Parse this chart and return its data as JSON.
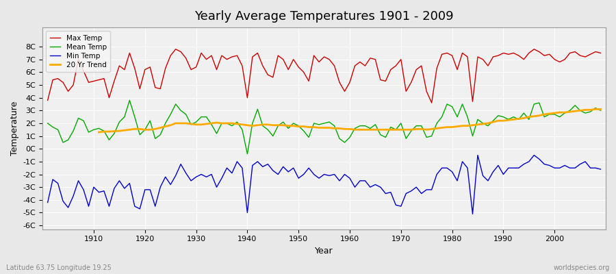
{
  "title": "Yearly Average Temperatures 1901 - 2009",
  "xlabel": "Year",
  "ylabel": "Temperature",
  "subtitle_left": "Latitude 63.75 Longitude 19.25",
  "subtitle_right": "worldspecies.org",
  "year_start": 1901,
  "year_end": 2009,
  "ylim": [
    -6,
    9
  ],
  "yticks": [
    -6,
    -5,
    -4,
    -3,
    -2,
    -1,
    0,
    1,
    2,
    3,
    4,
    5,
    6,
    7,
    8
  ],
  "ytick_labels": [
    "-6C",
    "-5C",
    "-4C",
    "-3C",
    "-2C",
    "-1C",
    "0C",
    "1C",
    "2C",
    "3C",
    "4C",
    "5C",
    "6C",
    "7C",
    "8C"
  ],
  "xticks": [
    1910,
    1920,
    1930,
    1940,
    1950,
    1960,
    1970,
    1980,
    1990,
    2000
  ],
  "colors": {
    "max_temp": "#cc0000",
    "mean_temp": "#00aa00",
    "min_temp": "#0000cc",
    "trend": "#ffaa00",
    "background": "#e8e8e8",
    "plot_bg": "#f0f0f0",
    "grid": "#ffffff"
  },
  "legend": {
    "max_label": "Max Temp",
    "mean_label": "Mean Temp",
    "min_label": "Min Temp",
    "trend_label": "20 Yr Trend"
  },
  "max_temp": [
    3.8,
    5.4,
    5.5,
    5.2,
    4.5,
    5.0,
    7.0,
    6.1,
    5.2,
    5.3,
    5.4,
    5.5,
    4.0,
    5.3,
    6.5,
    6.2,
    7.5,
    6.3,
    4.7,
    6.2,
    6.4,
    4.8,
    4.7,
    6.3,
    7.3,
    7.8,
    7.6,
    7.1,
    6.2,
    6.4,
    7.5,
    7.0,
    7.3,
    6.2,
    7.3,
    7.0,
    7.2,
    7.3,
    6.5,
    4.0,
    7.2,
    7.5,
    6.5,
    5.8,
    5.6,
    7.3,
    7.0,
    6.2,
    7.0,
    6.4,
    6.0,
    5.3,
    7.3,
    6.8,
    7.2,
    7.0,
    6.5,
    5.2,
    4.5,
    5.2,
    6.5,
    6.8,
    6.5,
    7.1,
    7.0,
    5.4,
    5.3,
    6.2,
    6.5,
    7.0,
    4.5,
    5.2,
    6.2,
    6.5,
    4.5,
    3.6,
    6.3,
    7.4,
    7.5,
    7.3,
    6.2,
    7.5,
    7.2,
    3.7,
    7.2,
    7.0,
    6.5,
    7.2,
    7.3,
    7.5,
    7.4,
    7.5,
    7.3,
    7.0,
    7.5,
    7.8,
    7.6,
    7.3,
    7.4,
    7.0,
    6.8,
    7.0,
    7.5,
    7.6,
    7.3,
    7.2,
    7.4,
    7.6,
    7.5
  ],
  "mean_temp": [
    2.0,
    1.7,
    1.5,
    0.5,
    0.7,
    1.4,
    2.4,
    2.2,
    1.3,
    1.5,
    1.6,
    1.4,
    0.7,
    1.2,
    2.1,
    2.5,
    3.8,
    2.5,
    1.1,
    1.5,
    2.2,
    0.8,
    1.1,
    2.0,
    2.7,
    3.5,
    3.0,
    2.7,
    1.9,
    2.1,
    2.5,
    2.5,
    1.9,
    1.2,
    2.0,
    2.0,
    1.8,
    2.1,
    1.5,
    -0.4,
    2.0,
    3.1,
    1.8,
    1.5,
    1.0,
    1.8,
    2.1,
    1.6,
    2.0,
    1.8,
    1.4,
    0.9,
    2.0,
    1.9,
    2.0,
    2.1,
    1.8,
    0.8,
    0.5,
    0.9,
    1.6,
    1.8,
    1.8,
    1.6,
    1.9,
    1.1,
    0.9,
    1.7,
    1.5,
    2.0,
    0.8,
    1.4,
    1.8,
    1.8,
    0.9,
    1.0,
    2.0,
    2.5,
    3.5,
    3.3,
    2.5,
    3.5,
    2.5,
    1.0,
    2.3,
    2.0,
    1.8,
    2.2,
    2.6,
    2.5,
    2.3,
    2.5,
    2.3,
    2.8,
    2.3,
    3.5,
    3.6,
    2.5,
    2.7,
    2.7,
    2.5,
    2.8,
    3.0,
    3.4,
    3.0,
    2.8,
    2.9,
    3.2,
    3.0
  ],
  "min_temp": [
    -4.2,
    -2.4,
    -2.7,
    -4.1,
    -4.6,
    -3.7,
    -2.5,
    -3.2,
    -4.5,
    -3.0,
    -3.4,
    -3.3,
    -4.5,
    -3.1,
    -2.5,
    -3.1,
    -2.7,
    -4.5,
    -4.7,
    -3.2,
    -3.2,
    -4.5,
    -3.0,
    -2.2,
    -2.8,
    -2.1,
    -1.2,
    -1.9,
    -2.5,
    -2.2,
    -2.0,
    -2.2,
    -2.0,
    -3.0,
    -2.3,
    -1.5,
    -1.9,
    -1.0,
    -1.5,
    -5.0,
    -1.3,
    -1.0,
    -1.4,
    -1.2,
    -1.7,
    -2.0,
    -1.4,
    -1.8,
    -1.5,
    -2.3,
    -2.0,
    -1.5,
    -2.0,
    -2.3,
    -2.0,
    -2.1,
    -2.0,
    -2.5,
    -2.0,
    -2.3,
    -3.0,
    -2.5,
    -2.5,
    -3.0,
    -2.8,
    -3.0,
    -3.5,
    -3.4,
    -4.4,
    -4.5,
    -3.5,
    -3.3,
    -3.0,
    -3.5,
    -3.2,
    -3.2,
    -2.0,
    -1.5,
    -1.5,
    -1.8,
    -2.5,
    -1.0,
    -1.5,
    -5.1,
    -0.5,
    -2.1,
    -2.5,
    -1.8,
    -1.3,
    -2.0,
    -1.5,
    -1.5,
    -1.5,
    -1.2,
    -1.0,
    -0.5,
    -0.8,
    -1.2,
    -1.3,
    -1.5,
    -1.5,
    -1.3,
    -1.5,
    -1.5,
    -1.2,
    -1.0,
    -1.5,
    -1.5,
    -1.6
  ],
  "trend": [
    null,
    null,
    null,
    null,
    null,
    null,
    null,
    null,
    null,
    null,
    1.3,
    1.35,
    1.35,
    1.38,
    1.4,
    1.45,
    1.5,
    1.55,
    1.55,
    1.5,
    1.5,
    1.55,
    1.65,
    1.75,
    1.85,
    2.0,
    2.0,
    2.0,
    1.95,
    1.9,
    1.9,
    1.95,
    2.0,
    2.05,
    2.0,
    2.0,
    2.0,
    1.95,
    1.9,
    1.85,
    1.8,
    1.85,
    1.9,
    1.9,
    1.85,
    1.85,
    1.85,
    1.8,
    1.8,
    1.75,
    1.75,
    1.7,
    1.7,
    1.65,
    1.65,
    1.65,
    1.6,
    1.6,
    1.55,
    1.55,
    1.5,
    1.5,
    1.5,
    1.5,
    1.5,
    1.5,
    1.5,
    1.5,
    1.5,
    1.5,
    1.5,
    1.5,
    1.55,
    1.55,
    1.5,
    1.55,
    1.6,
    1.65,
    1.7,
    1.7,
    1.75,
    1.8,
    1.8,
    1.85,
    1.9,
    1.95,
    2.0,
    2.1,
    2.2,
    2.2,
    2.25,
    2.3,
    2.35,
    2.4,
    2.5,
    2.55,
    2.6,
    2.7,
    2.75,
    2.8,
    2.85,
    2.85,
    2.9,
    2.95,
    3.0,
    3.05,
    3.05,
    3.1,
    3.1
  ]
}
